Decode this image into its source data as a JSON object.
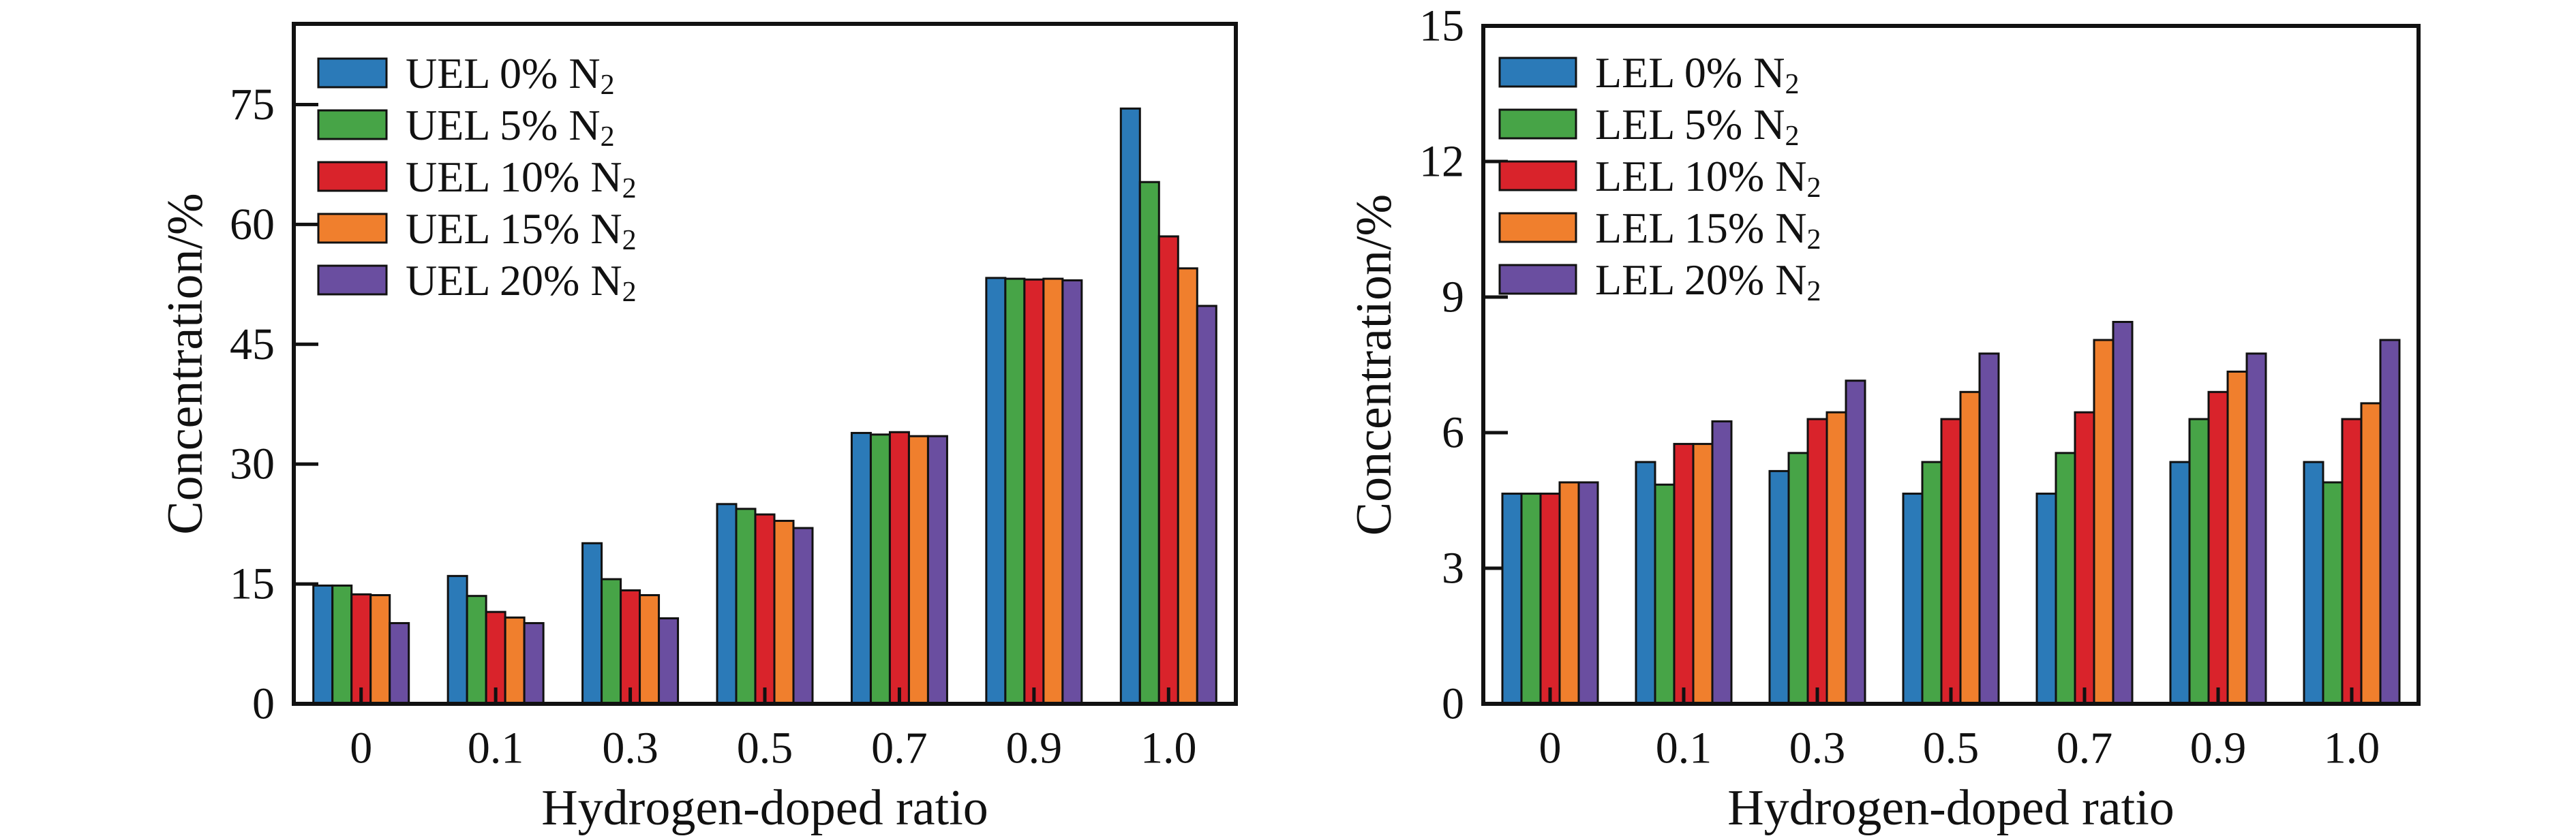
{
  "figure": {
    "background": "#ffffff",
    "ink_color": "#111111",
    "x_axis_title": "Hydrogen-doped ratio",
    "y_axis_title": "Concentration/%"
  },
  "chart_data": [
    {
      "type": "bar",
      "title": "",
      "xlabel": "Hydrogen-doped ratio",
      "ylabel": "Concentration/%",
      "categories": [
        "0",
        "0.1",
        "0.3",
        "0.5",
        "0.7",
        "0.9",
        "1.0"
      ],
      "yticks": [
        0,
        15,
        30,
        45,
        60,
        75
      ],
      "ylim": [
        0,
        85.1
      ],
      "grid": false,
      "legend_position": "top-left-inside",
      "series": [
        {
          "name": "UEL 0% N₂",
          "name_main": "UEL 0% N",
          "name_sub": "2",
          "color": "#2B7AB8",
          "values": [
            14.8,
            16.0,
            20.1,
            25.0,
            33.9,
            53.3,
            74.5
          ]
        },
        {
          "name": "UEL 5% N₂",
          "name_main": "UEL 5% N",
          "name_sub": "2",
          "color": "#47A447",
          "values": [
            14.8,
            13.5,
            15.6,
            24.4,
            33.7,
            53.2,
            65.3
          ]
        },
        {
          "name": "UEL 10% N₂",
          "name_main": "UEL 10% N",
          "name_sub": "2",
          "color": "#D9232B",
          "values": [
            13.7,
            11.5,
            14.2,
            23.7,
            34.0,
            53.1,
            58.5
          ]
        },
        {
          "name": "UEL 15% N₂",
          "name_main": "UEL 15% N",
          "name_sub": "2",
          "color": "#F07F2D",
          "values": [
            13.6,
            10.8,
            13.6,
            22.9,
            33.5,
            53.2,
            54.5
          ]
        },
        {
          "name": "UEL 20% N₂",
          "name_main": "UEL 20% N",
          "name_sub": "2",
          "color": "#6A4EA0",
          "values": [
            10.1,
            10.1,
            10.7,
            22.0,
            33.5,
            53.0,
            49.8
          ]
        }
      ]
    },
    {
      "type": "bar",
      "title": "",
      "xlabel": "Hydrogen-doped ratio",
      "ylabel": "Concentration/%",
      "categories": [
        "0",
        "0.1",
        "0.3",
        "0.5",
        "0.7",
        "0.9",
        "1.0"
      ],
      "yticks": [
        0,
        3,
        6,
        9,
        12,
        15
      ],
      "ylim": [
        0,
        15
      ],
      "grid": false,
      "legend_position": "top-left-inside",
      "series": [
        {
          "name": "LEL 0% N₂",
          "name_main": "LEL 0% N",
          "name_sub": "2",
          "color": "#2B7AB8",
          "values": [
            4.65,
            5.35,
            5.15,
            4.65,
            4.65,
            5.35,
            5.35
          ]
        },
        {
          "name": "LEL 5% N₂",
          "name_main": "LEL 5% N",
          "name_sub": "2",
          "color": "#47A447",
          "values": [
            4.65,
            4.85,
            5.55,
            5.35,
            5.55,
            6.3,
            4.9
          ]
        },
        {
          "name": "LEL 10% N₂",
          "name_main": "LEL 10% N",
          "name_sub": "2",
          "color": "#D9232B",
          "values": [
            4.65,
            5.75,
            6.3,
            6.3,
            6.45,
            6.9,
            6.3
          ]
        },
        {
          "name": "LEL 15% N₂",
          "name_main": "LEL 15% N",
          "name_sub": "2",
          "color": "#F07F2D",
          "values": [
            4.9,
            5.75,
            6.45,
            6.9,
            8.05,
            7.35,
            6.65
          ]
        },
        {
          "name": "LEL 20% N₂",
          "name_main": "LEL 20% N",
          "name_sub": "2",
          "color": "#6A4EA0",
          "values": [
            4.9,
            6.25,
            7.15,
            7.75,
            8.45,
            7.75,
            8.05
          ]
        }
      ]
    }
  ]
}
